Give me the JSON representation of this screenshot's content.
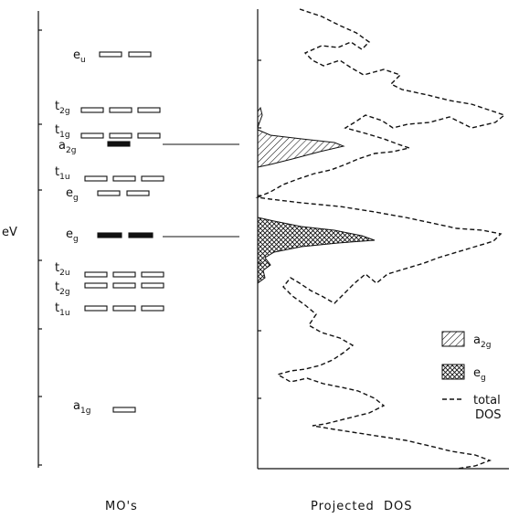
{
  "axis_label": "eV",
  "captions": {
    "left": "MO's",
    "right": "Projected  DOS"
  },
  "levels": [
    {
      "sym": "e",
      "sub": "u",
      "boxes": 2,
      "filled": false
    },
    {
      "sym": "t",
      "sub": "2g",
      "boxes": 3,
      "filled": false
    },
    {
      "sym": "t",
      "sub": "1g",
      "boxes": 3,
      "filled": false
    },
    {
      "sym": "a",
      "sub": "2g",
      "boxes": 1,
      "filled": true
    },
    {
      "sym": "t",
      "sub": "1u",
      "boxes": 3,
      "filled": false
    },
    {
      "sym": "e",
      "sub": "g",
      "boxes": 2,
      "filled": false
    },
    {
      "sym": "e",
      "sub": "g",
      "boxes": 2,
      "filled": true
    },
    {
      "sym": "t",
      "sub": "2u",
      "boxes": 3,
      "filled": false
    },
    {
      "sym": "t",
      "sub": "2g",
      "boxes": 3,
      "filled": false
    },
    {
      "sym": "t",
      "sub": "1u",
      "boxes": 3,
      "filled": false
    },
    {
      "sym": "a",
      "sub": "1g",
      "boxes": 1,
      "filled": false
    }
  ],
  "legend": [
    {
      "sym": "a",
      "sub": "2g",
      "pattern": "hatch"
    },
    {
      "sym": "e",
      "sub": "g",
      "pattern": "crosshatch"
    },
    {
      "line1": "total",
      "line2": "DOS",
      "pattern": "dashed"
    }
  ]
}
